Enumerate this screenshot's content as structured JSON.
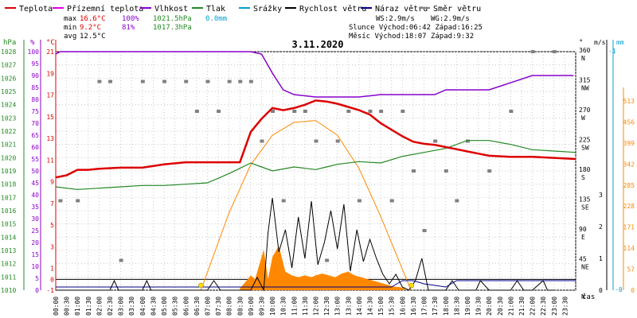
{
  "chart_data": {
    "type": "line",
    "title": "3.11.2020",
    "legend": {
      "placement": "top",
      "items": [
        {
          "name": "Teplota",
          "color": "#dd0000"
        },
        {
          "name": "Přízemní teplota",
          "color": "#e000e0"
        },
        {
          "name": "Vlhkost",
          "color": "#8800cc"
        },
        {
          "name": "Tlak",
          "color": "#228822"
        },
        {
          "name": "Srážky",
          "color": "#00a0d0"
        },
        {
          "name": "Rychlost větru",
          "color": "#000000"
        },
        {
          "name": "Náraz větru",
          "color": "#000088"
        },
        {
          "name": "Směr větru",
          "color": "#808080"
        }
      ]
    },
    "stats": {
      "max_label": "max",
      "max_temp": "16.6°C",
      "max_hum": "100%",
      "max_press": "1021.5hPa",
      "max_rain": "0.0mm",
      "min_label": "min",
      "min_temp": "9.2°C",
      "min_hum": "81%",
      "min_press": "1017.3hPa",
      "avg_label": "avg",
      "avg_temp": "12.5°C",
      "ws": "WS:2.9m/s",
      "wg": "WG:2.9m/s",
      "sun": "Slunce Východ:06:42  Západ:16:25",
      "moon": "Měsíc  Východ:18:07  Západ:9:32"
    },
    "axes": {
      "hpa": {
        "title": "hPa",
        "range": [
          1010,
          1028
        ],
        "ticks": [
          1010,
          1011,
          1012,
          1013,
          1014,
          1015,
          1016,
          1017,
          1018,
          1019,
          1020,
          1021,
          1022,
          1023,
          1024,
          1025,
          1026,
          1027,
          1028
        ],
        "color": "#228822"
      },
      "percent": {
        "title": "%",
        "range": [
          0,
          100
        ],
        "ticks": [
          0,
          5,
          10,
          15,
          20,
          25,
          30,
          35,
          40,
          45,
          50,
          55,
          60,
          65,
          70,
          75,
          80,
          85,
          90,
          95,
          100
        ],
        "color": "#8800cc"
      },
      "celsius": {
        "title": "°C",
        "range": [
          -1,
          21
        ],
        "ticks": [
          -1,
          0,
          1,
          3,
          5,
          7,
          9,
          11,
          13,
          15,
          17,
          19,
          21
        ],
        "color": "#dd0000"
      },
      "degrees": {
        "title": "°",
        "ticks": [
          {
            "v": 0,
            "deg": "",
            "dir": "N"
          },
          {
            "v": 45,
            "deg": "45",
            "dir": "NE"
          },
          {
            "v": 90,
            "deg": "90",
            "dir": "E"
          },
          {
            "v": 135,
            "deg": "135",
            "dir": "SE"
          },
          {
            "v": 180,
            "deg": "180",
            "dir": "S"
          },
          {
            "v": 225,
            "deg": "225",
            "dir": "SW"
          },
          {
            "v": 270,
            "deg": "270",
            "dir": "W"
          },
          {
            "v": 315,
            "deg": "315",
            "dir": "NW"
          },
          {
            "v": 360,
            "deg": "360",
            "dir": "N"
          }
        ]
      },
      "ms": {
        "title": "m/s",
        "ticks": [
          {
            "v": 0,
            "label": "0"
          },
          {
            "v": 1,
            "label": "1"
          },
          {
            "v": 2,
            "label": "2"
          },
          {
            "v": 3,
            "label": "3"
          }
        ]
      },
      "mm": {
        "title": "mm",
        "ticks": [
          {
            "v": 0,
            "label": "-0"
          },
          {
            "v": 1,
            "label": "-1"
          }
        ]
      },
      "solar": {
        "ticks": [
          0,
          57,
          114,
          171,
          228,
          285,
          342,
          399,
          456,
          513
        ],
        "color": "#ff8800"
      },
      "x_title": "čas",
      "x_ticks": [
        "00:00",
        "00:30",
        "01:00",
        "01:30",
        "02:00",
        "02:30",
        "03:00",
        "03:30",
        "04:00",
        "04:30",
        "05:00",
        "05:30",
        "06:00",
        "06:30",
        "07:00",
        "07:30",
        "08:00",
        "08:30",
        "09:00",
        "09:30",
        "10:00",
        "10:30",
        "11:00",
        "11:30",
        "12:00",
        "12:30",
        "13:00",
        "13:30",
        "14:00",
        "14:30",
        "15:00",
        "15:30",
        "16:00",
        "16:30",
        "17:00",
        "17:30",
        "18:00",
        "18:30",
        "19:00",
        "19:30",
        "20:00",
        "20:30",
        "21:00",
        "21:30",
        "22:00",
        "22:30",
        "23:00",
        "23:30"
      ],
      "x_range_h": [
        0,
        24
      ]
    },
    "series": [
      {
        "name": "Teplota",
        "unit": "°C",
        "x": [
          0,
          0.5,
          1,
          1.5,
          2,
          3,
          4,
          5,
          6,
          7,
          8,
          8.5,
          9,
          9.5,
          10,
          10.5,
          11,
          11.5,
          12,
          12.5,
          13,
          13.5,
          14,
          14.5,
          15,
          15.5,
          16,
          16.5,
          17,
          17.5,
          18,
          18.5,
          19,
          19.5,
          20,
          21,
          22,
          23,
          24
        ],
        "values": [
          9.4,
          9.6,
          10.1,
          10.1,
          10.2,
          10.3,
          10.3,
          10.6,
          10.8,
          10.8,
          10.8,
          10.8,
          13.6,
          14.8,
          15.8,
          15.6,
          15.8,
          16.1,
          16.5,
          16.4,
          16.2,
          15.9,
          15.6,
          15.2,
          14.4,
          13.8,
          13.2,
          12.7,
          12.5,
          12.4,
          12.2,
          12.0,
          11.8,
          11.6,
          11.4,
          11.3,
          11.3,
          11.2,
          11.1
        ]
      },
      {
        "name": "Vlhkost",
        "unit": "%",
        "x": [
          0,
          0.2,
          7,
          8,
          9,
          9.5,
          10,
          10.5,
          11,
          12,
          13,
          14,
          15,
          16,
          17,
          17.5,
          18,
          20,
          22,
          23.9
        ],
        "values": [
          99,
          100,
          100,
          100,
          100,
          99,
          91,
          84,
          82,
          81,
          81,
          81,
          82,
          82,
          82,
          82,
          84,
          84,
          90,
          90
        ]
      },
      {
        "name": "Tlak",
        "unit": "hPa",
        "x": [
          0,
          1,
          2,
          3,
          4,
          5,
          6,
          7,
          8,
          8.5,
          9,
          9.5,
          10,
          11,
          12,
          12.5,
          13,
          14,
          15,
          16,
          17,
          18,
          19,
          20,
          21,
          22,
          23,
          24
        ],
        "values": [
          1017.8,
          1017.6,
          1017.7,
          1017.8,
          1017.9,
          1017.9,
          1018.0,
          1018.1,
          1018.8,
          1019.2,
          1019.6,
          1019.3,
          1019.0,
          1019.3,
          1019.1,
          1019.3,
          1019.5,
          1019.7,
          1019.6,
          1020.1,
          1020.4,
          1020.7,
          1021.3,
          1021.3,
          1021.0,
          1020.6,
          1020.5,
          1020.4
        ]
      },
      {
        "name": "Rychlost větru",
        "unit": "m/s",
        "x": [
          0,
          2.5,
          2.7,
          2.9,
          4,
          4.2,
          4.4,
          7,
          7.3,
          7.6,
          9,
          9.3,
          9.6,
          9.8,
          10,
          10.3,
          10.6,
          10.9,
          11.2,
          11.5,
          11.8,
          12.1,
          12.4,
          12.7,
          13,
          13.3,
          13.6,
          13.9,
          14.2,
          14.5,
          14.8,
          15.1,
          15.4,
          15.7,
          16,
          16.3,
          16.6,
          16.9,
          17.2,
          17.5,
          18,
          18.3,
          18.6,
          19,
          19.4,
          19.6,
          20,
          21,
          21.3,
          21.6,
          22,
          22.5,
          22.7,
          23
        ],
        "values": [
          0,
          0,
          0.3,
          0,
          0,
          0.3,
          0,
          0,
          0.3,
          0,
          0,
          0.4,
          0,
          1.8,
          2.9,
          1.2,
          1.9,
          0.7,
          2.3,
          1.0,
          2.8,
          0.8,
          1.5,
          2.5,
          1.3,
          2.7,
          0.6,
          1.9,
          0.9,
          1.6,
          1.0,
          0.5,
          0.2,
          0.5,
          0.1,
          0,
          0.3,
          1.0,
          0,
          0,
          0,
          0.3,
          0,
          0,
          0,
          0.3,
          0,
          0,
          0.3,
          0,
          0,
          0.3,
          0,
          0
        ]
      },
      {
        "name": "Náraz větru",
        "unit": "m/s",
        "x": [
          0,
          15.5,
          16,
          16.5,
          17,
          18,
          18.5,
          24
        ],
        "values": [
          0.1,
          0.1,
          0.3,
          0.3,
          0.2,
          0.1,
          0.3,
          0.3
        ]
      },
      {
        "name": "Solar",
        "unit": "W/m²",
        "x": [
          8.5,
          8.8,
          9,
          9.2,
          9.4,
          9.6,
          9.8,
          10,
          10.3,
          10.6,
          10.9,
          11.2,
          11.5,
          11.8,
          12,
          12.3,
          12.6,
          12.9,
          13.2,
          13.5,
          13.8,
          14.1,
          14.4,
          14.7,
          15,
          15.3,
          15.6,
          15.9,
          16.1
        ],
        "values": [
          5,
          25,
          40,
          30,
          70,
          110,
          30,
          90,
          120,
          50,
          40,
          35,
          40,
          35,
          40,
          45,
          40,
          35,
          45,
          50,
          40,
          35,
          30,
          25,
          20,
          15,
          10,
          8,
          5
        ]
      },
      {
        "name": "Max Solar",
        "unit": "W/m²",
        "x": [
          6.7,
          8,
          9,
          10,
          11,
          12,
          13,
          14,
          15,
          16.4
        ],
        "values": [
          0,
          210,
          340,
          420,
          455,
          460,
          420,
          330,
          200,
          0
        ]
      },
      {
        "name": "Směr větru",
        "unit": "°",
        "x": [
          0.2,
          1,
          2,
          2.5,
          3,
          4,
          5,
          6,
          6.5,
          7,
          7.5,
          8,
          8.5,
          9,
          9.5,
          10,
          10.5,
          11,
          11.5,
          12,
          12.5,
          13,
          13.5,
          14,
          14.5,
          15,
          15.5,
          16,
          16.5,
          17,
          17.5,
          18,
          18.5,
          19,
          20,
          21,
          22,
          23
        ],
        "values": [
          135,
          135,
          315,
          315,
          45,
          315,
          315,
          315,
          270,
          315,
          270,
          315,
          315,
          315,
          225,
          270,
          135,
          270,
          270,
          225,
          45,
          225,
          270,
          135,
          270,
          270,
          135,
          270,
          180,
          90,
          225,
          180,
          135,
          225,
          180,
          270,
          360,
          360
        ]
      }
    ]
  }
}
